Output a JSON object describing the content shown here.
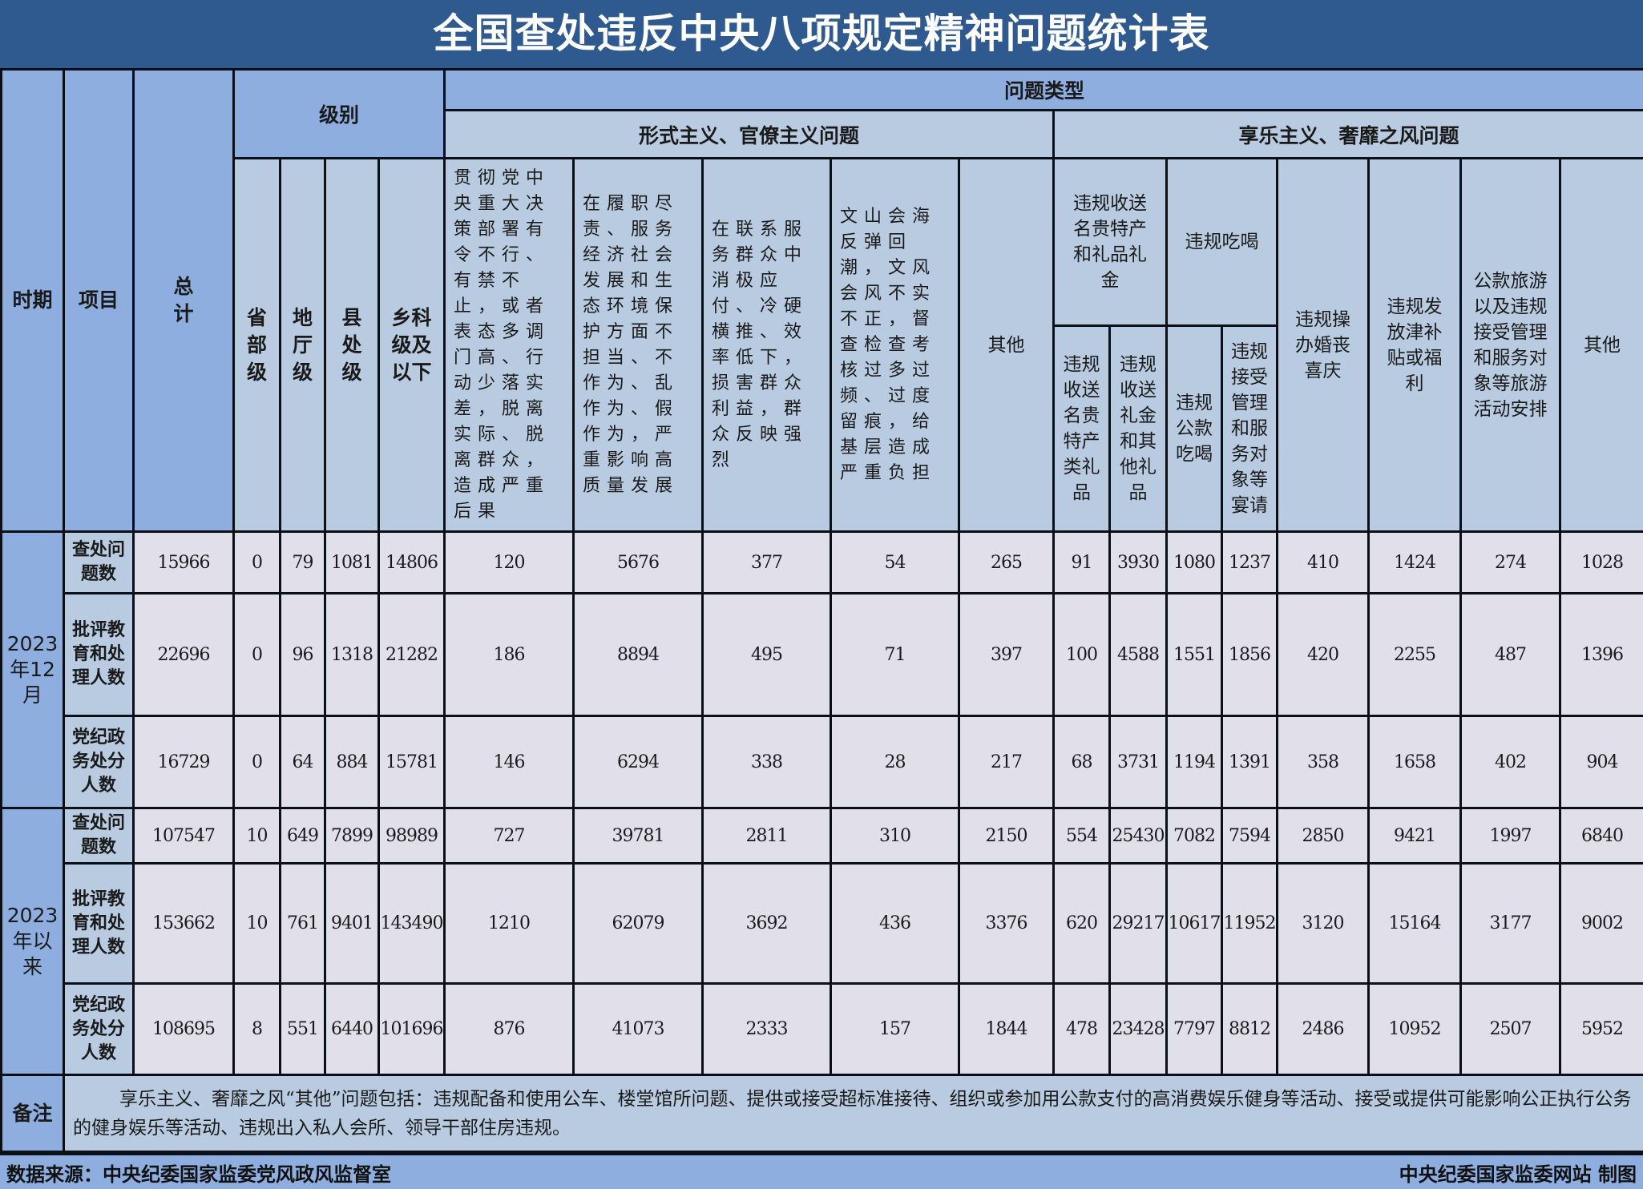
{
  "title": "全国查处违反中央八项规定精神问题统计表",
  "colors": {
    "title_bar": "#2f5a8f",
    "header_dark": "#8eaee0",
    "header_light": "#b8cbe0",
    "data_cell": "#e1e0ea"
  },
  "header": {
    "period": "时期",
    "item": "项目",
    "total": "总计",
    "level": "级别",
    "levels": [
      "省部级",
      "地厅级",
      "县处级",
      "乡科级及以下"
    ],
    "problem_type": "问题类型",
    "formalism": {
      "label": "形式主义、官僚主义问题",
      "columns": [
        "贯彻党中央重大决策部署有令不行、有禁不止，或者表态多调门高、行动少落实差，脱离实际、脱离群众，造成严重后果",
        "在履职尽责、服务经济社会发展和生态环境保护方面不担当、不作为、乱作为、假作为，严重影响高质量发展",
        "在联系服务群众中消极应付、冷硬横推、效率低下，损害群众利益，群众反映强烈",
        "文山会海反弹回潮，文风会风不实不正，督查检查考核过多过频、过度留痕，给基层造成严重负担",
        "其他"
      ]
    },
    "hedonism": {
      "label": "享乐主义、奢靡之风问题",
      "gifts": {
        "label": "违规收送名贵特产和礼品礼金",
        "sub": [
          "违规收送名贵特产类礼品",
          "违规收送礼金和其他礼品"
        ]
      },
      "dining": {
        "label": "违规吃喝",
        "sub": [
          "违规公款吃喝",
          "违规接受管理和服务对象等宴请"
        ]
      },
      "others": [
        "违规操办婚丧喜庆",
        "违规发放津补贴或福利",
        "公款旅游以及违规接受管理和服务对象等旅游活动安排",
        "其他"
      ]
    }
  },
  "groups": [
    {
      "period": "2023年12月",
      "rows": [
        {
          "item": "查处问题数",
          "values": [
            "15966",
            "0",
            "79",
            "1081",
            "14806",
            "120",
            "5676",
            "377",
            "54",
            "265",
            "91",
            "3930",
            "1080",
            "1237",
            "410",
            "1424",
            "274",
            "1028"
          ]
        },
        {
          "item": "批评教育和处理人数",
          "values": [
            "22696",
            "0",
            "96",
            "1318",
            "21282",
            "186",
            "8894",
            "495",
            "71",
            "397",
            "100",
            "4588",
            "1551",
            "1856",
            "420",
            "2255",
            "487",
            "1396"
          ]
        },
        {
          "item": "党纪政务处分人数",
          "values": [
            "16729",
            "0",
            "64",
            "884",
            "15781",
            "146",
            "6294",
            "338",
            "28",
            "217",
            "68",
            "3731",
            "1194",
            "1391",
            "358",
            "1658",
            "402",
            "904"
          ]
        }
      ]
    },
    {
      "period": "2023年以来",
      "rows": [
        {
          "item": "查处问题数",
          "values": [
            "107547",
            "10",
            "649",
            "7899",
            "98989",
            "727",
            "39781",
            "2811",
            "310",
            "2150",
            "554",
            "25430",
            "7082",
            "7594",
            "2850",
            "9421",
            "1997",
            "6840"
          ]
        },
        {
          "item": "批评教育和处理人数",
          "values": [
            "153662",
            "10",
            "761",
            "9401",
            "143490",
            "1210",
            "62079",
            "3692",
            "436",
            "3376",
            "620",
            "29217",
            "10617",
            "11952",
            "3120",
            "15164",
            "3177",
            "9002"
          ]
        },
        {
          "item": "党纪政务处分人数",
          "values": [
            "108695",
            "8",
            "551",
            "6440",
            "101696",
            "876",
            "41073",
            "2333",
            "157",
            "1844",
            "478",
            "23428",
            "7797",
            "8812",
            "2486",
            "10952",
            "2507",
            "5952"
          ]
        }
      ]
    }
  ],
  "notes": {
    "label": "备注",
    "text": "享乐主义、奢靡之风“其他”问题包括：违规配备和使用公车、楼堂馆所问题、提供或接受超标准接待、组织或参加用公款支付的高消费娱乐健身等活动、接受或提供可能影响公正执行公务的健身娱乐等活动、违规出入私人会所、领导干部住房违规。"
  },
  "footer": {
    "source": "数据来源：中央纪委国家监委党风政风监督室",
    "credit": "中央纪委国家监委网站 制图"
  }
}
